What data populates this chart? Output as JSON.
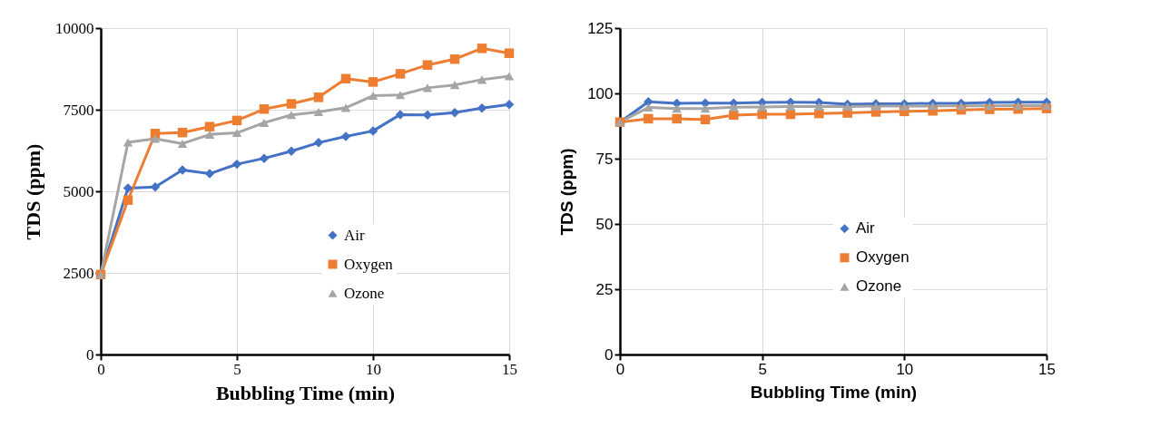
{
  "chart_data": [
    {
      "type": "line",
      "xlabel": "Bubbling Time (min)",
      "ylabel": "TDS (ppm)",
      "x": [
        0,
        1,
        2,
        3,
        4,
        5,
        6,
        7,
        8,
        9,
        10,
        11,
        12,
        13,
        14,
        15
      ],
      "xlim": [
        0,
        15
      ],
      "xticks": [
        0,
        5,
        10,
        15
      ],
      "ylim": [
        0,
        10000
      ],
      "yticks": [
        0,
        2500,
        5000,
        7500,
        10000
      ],
      "grid": true,
      "legend": "bottom right",
      "series": [
        {
          "name": "Air",
          "color": "#4472c4",
          "marker": "diamond",
          "values": [
            2450,
            5100,
            5130,
            5650,
            5540,
            5830,
            6010,
            6230,
            6490,
            6680,
            6850,
            7350,
            7340,
            7410,
            7550,
            7660
          ]
        },
        {
          "name": "Oxygen",
          "color": "#ed7d31",
          "marker": "square",
          "values": [
            2450,
            4730,
            6770,
            6800,
            6980,
            7170,
            7520,
            7680,
            7880,
            8450,
            8350,
            8600,
            8870,
            9050,
            9380,
            9230
          ]
        },
        {
          "name": "Ozone",
          "color": "#a5a5a5",
          "marker": "triangle",
          "values": [
            2450,
            6500,
            6610,
            6460,
            6740,
            6790,
            7100,
            7340,
            7430,
            7560,
            7930,
            7950,
            8170,
            8260,
            8420,
            8530
          ]
        }
      ]
    },
    {
      "type": "line",
      "xlabel": "Bubbling Time (min)",
      "ylabel": "TDS (ppm)",
      "x": [
        0,
        1,
        2,
        3,
        4,
        5,
        6,
        7,
        8,
        9,
        10,
        11,
        12,
        13,
        14,
        15
      ],
      "xlim": [
        0,
        15
      ],
      "xticks": [
        0,
        5,
        10,
        15
      ],
      "ylim": [
        0,
        125
      ],
      "yticks": [
        0,
        25,
        50,
        75,
        100,
        125
      ],
      "grid": true,
      "legend": "bottom",
      "series": [
        {
          "name": "Air",
          "color": "#4472c4",
          "marker": "diamond",
          "values": [
            89,
            96.8,
            96.2,
            96.3,
            96.3,
            96.5,
            96.6,
            96.5,
            95.8,
            96,
            96,
            96.2,
            96.2,
            96.5,
            96.6,
            96.6
          ]
        },
        {
          "name": "Oxygen",
          "color": "#ed7d31",
          "marker": "square",
          "values": [
            89,
            90.3,
            90.3,
            90,
            91.7,
            92,
            92,
            92.3,
            92.5,
            92.9,
            93.1,
            93.3,
            93.7,
            93.9,
            94,
            94.2
          ]
        },
        {
          "name": "Ozone",
          "color": "#a5a5a5",
          "marker": "triangle",
          "values": [
            89,
            94.6,
            94.2,
            94.2,
            94.7,
            94.8,
            95,
            95,
            95,
            95.1,
            95.1,
            95.2,
            95.2,
            95.2,
            95.3,
            95.3
          ]
        }
      ]
    }
  ]
}
